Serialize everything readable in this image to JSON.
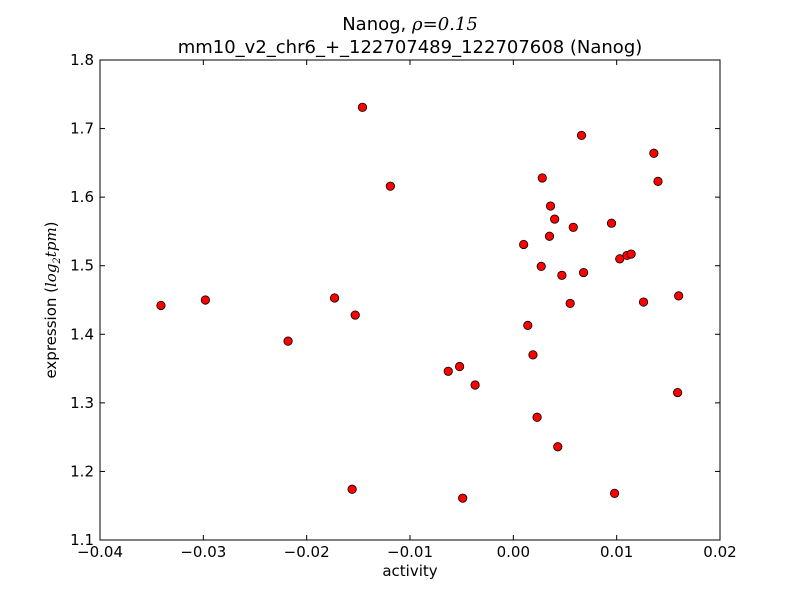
{
  "chart_data": {
    "type": "scatter",
    "title_prefix": "Nanog, ",
    "title_rho_symbol": "ρ",
    "title_rho_value": "=0.15",
    "subtitle": "mm10_v2_chr6_+_122707489_122707608 (Nanog)",
    "xlabel": "activity",
    "ylabel_prefix": "expression (",
    "ylabel_math": "log",
    "ylabel_math_sub": "2",
    "ylabel_math_rest": "tpm",
    "ylabel_suffix": ")",
    "xlim": [
      -0.04,
      0.02
    ],
    "ylim": [
      1.1,
      1.8
    ],
    "xticks": [
      -0.04,
      -0.03,
      -0.02,
      -0.01,
      0.0,
      0.01,
      0.02
    ],
    "xtick_labels": [
      "−0.04",
      "−0.03",
      "−0.02",
      "−0.01",
      "0.00",
      "0.01",
      "0.02"
    ],
    "yticks": [
      1.1,
      1.2,
      1.3,
      1.4,
      1.5,
      1.6,
      1.7,
      1.8
    ],
    "ytick_labels": [
      "1.1",
      "1.2",
      "1.3",
      "1.4",
      "1.5",
      "1.6",
      "1.7",
      "1.8"
    ],
    "marker_color": "#ff0000",
    "marker_edge_color": "#000000",
    "grid": false,
    "points": [
      {
        "x": -0.0341,
        "y": 1.442
      },
      {
        "x": -0.0298,
        "y": 1.45
      },
      {
        "x": -0.0218,
        "y": 1.39
      },
      {
        "x": -0.0173,
        "y": 1.453
      },
      {
        "x": -0.0156,
        "y": 1.174
      },
      {
        "x": -0.0153,
        "y": 1.428
      },
      {
        "x": -0.0146,
        "y": 1.731
      },
      {
        "x": -0.0119,
        "y": 1.616
      },
      {
        "x": -0.0063,
        "y": 1.346
      },
      {
        "x": -0.0052,
        "y": 1.353
      },
      {
        "x": -0.0049,
        "y": 1.161
      },
      {
        "x": -0.0037,
        "y": 1.326
      },
      {
        "x": 0.001,
        "y": 1.531
      },
      {
        "x": 0.0014,
        "y": 1.413
      },
      {
        "x": 0.0019,
        "y": 1.37
      },
      {
        "x": 0.0023,
        "y": 1.279
      },
      {
        "x": 0.0027,
        "y": 1.499
      },
      {
        "x": 0.0028,
        "y": 1.628
      },
      {
        "x": 0.0035,
        "y": 1.543
      },
      {
        "x": 0.0036,
        "y": 1.587
      },
      {
        "x": 0.004,
        "y": 1.568
      },
      {
        "x": 0.0043,
        "y": 1.236
      },
      {
        "x": 0.0047,
        "y": 1.486
      },
      {
        "x": 0.0055,
        "y": 1.445
      },
      {
        "x": 0.0058,
        "y": 1.556
      },
      {
        "x": 0.0066,
        "y": 1.69
      },
      {
        "x": 0.0068,
        "y": 1.49
      },
      {
        "x": 0.0095,
        "y": 1.562
      },
      {
        "x": 0.0098,
        "y": 1.168
      },
      {
        "x": 0.0103,
        "y": 1.51
      },
      {
        "x": 0.011,
        "y": 1.515
      },
      {
        "x": 0.0114,
        "y": 1.517
      },
      {
        "x": 0.0126,
        "y": 1.447
      },
      {
        "x": 0.0136,
        "y": 1.664
      },
      {
        "x": 0.014,
        "y": 1.623
      },
      {
        "x": 0.0159,
        "y": 1.315
      },
      {
        "x": 0.016,
        "y": 1.456
      }
    ]
  }
}
